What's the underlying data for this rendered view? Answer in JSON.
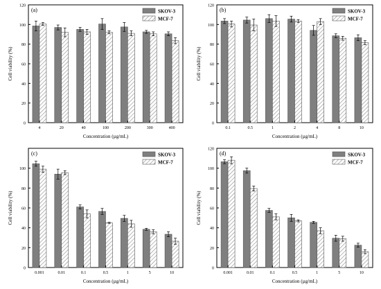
{
  "colors": {
    "skov": "#7f7f7f",
    "mcf_bg": "#ffffff",
    "mcf_hatch": "#8a8a8a",
    "axis": "#000000"
  },
  "chart_data": [
    {
      "panel_label": "(a)",
      "type": "bar",
      "xlabel": "Concentration (µg/mL)",
      "ylabel": "Cell viability (%)",
      "ylim": [
        0,
        120
      ],
      "yticks": [
        0,
        20,
        40,
        60,
        80,
        100,
        120
      ],
      "categories": [
        "4",
        "20",
        "40",
        "100",
        "200",
        "300",
        "400"
      ],
      "legend_position": "top-right",
      "series": [
        {
          "name": "SKOV-3",
          "values": [
            98.5,
            97,
            95,
            100.5,
            97.5,
            92.5,
            90.5
          ],
          "errors": [
            5,
            2.5,
            2,
            5.5,
            4.5,
            1.5,
            2
          ]
        },
        {
          "name": "MCF-7",
          "values": [
            100.5,
            92,
            92.5,
            92,
            91,
            90.5,
            83.5
          ],
          "errors": [
            1.5,
            4.5,
            2.5,
            1.5,
            2.5,
            2,
            3
          ]
        }
      ]
    },
    {
      "panel_label": "(b)",
      "type": "bar",
      "xlabel": "Concentration (µg/mL)",
      "ylabel": "Cell viability (%)",
      "ylim": [
        0,
        120
      ],
      "yticks": [
        0,
        20,
        40,
        60,
        80,
        100,
        120
      ],
      "categories": [
        "0.1",
        "0.5",
        "1",
        "2",
        "4",
        "8",
        "10"
      ],
      "legend_position": "top-right",
      "series": [
        {
          "name": "SKOV-3",
          "values": [
            103.5,
            104.5,
            106,
            105.5,
            94,
            88.5,
            86.5
          ],
          "errors": [
            2.5,
            3,
            4,
            3,
            5,
            2,
            3
          ]
        },
        {
          "name": "MCF-7",
          "values": [
            100.5,
            99.5,
            103.5,
            103.5,
            103,
            86,
            81.5
          ],
          "errors": [
            3,
            6,
            5.5,
            1.5,
            3,
            2,
            2
          ]
        }
      ]
    },
    {
      "panel_label": "(c)",
      "type": "bar",
      "xlabel": "Concentration (µg/mL)",
      "ylabel": "Cell viability (%)",
      "ylim": [
        0,
        120
      ],
      "yticks": [
        0,
        20,
        40,
        60,
        80,
        100
      ],
      "categories": [
        "0.001",
        "0.01",
        "0.1",
        "0.5",
        "1",
        "5",
        "10"
      ],
      "legend_position": "top-right",
      "series": [
        {
          "name": "SKOV-3",
          "values": [
            104.5,
            94,
            61,
            56.5,
            49.5,
            38.5,
            33.5
          ],
          "errors": [
            2.5,
            5,
            2,
            3,
            3,
            1,
            2.5
          ]
        },
        {
          "name": "MCF-7",
          "values": [
            99,
            95.5,
            54,
            45,
            44,
            36,
            26.5
          ],
          "errors": [
            3,
            2,
            4,
            0.5,
            3.5,
            2,
            3
          ]
        }
      ]
    },
    {
      "panel_label": "(d)",
      "type": "bar",
      "xlabel": "Concentration (µg/mL)",
      "ylabel": "Cell viability (%)",
      "ylim": [
        0,
        120
      ],
      "yticks": [
        0,
        20,
        40,
        60,
        80,
        100,
        120
      ],
      "categories": [
        "0.001",
        "0.01",
        "0.1",
        "0.5",
        "1",
        "5",
        "10"
      ],
      "legend_position": "top-right",
      "series": [
        {
          "name": "SKOV-3",
          "values": [
            106.5,
            97.5,
            57.5,
            50,
            45.5,
            29.5,
            22.5
          ],
          "errors": [
            2,
            2.5,
            2,
            3.5,
            1,
            3,
            2
          ]
        },
        {
          "name": "MCF-7",
          "values": [
            108,
            79.5,
            51,
            47,
            37,
            29,
            16
          ],
          "errors": [
            3.5,
            2.5,
            3,
            1,
            3,
            2.5,
            2
          ]
        }
      ]
    }
  ]
}
